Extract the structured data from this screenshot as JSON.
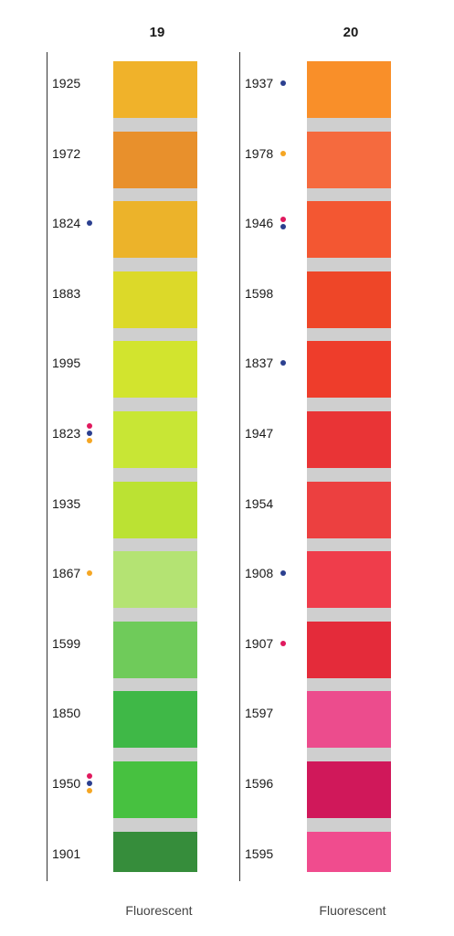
{
  "columns": [
    {
      "title": "19",
      "footer": "Fluorescent",
      "items": [
        {
          "code": "1925",
          "color": "#f0b22a",
          "dots": []
        },
        {
          "code": "1972",
          "color": "#e8902c",
          "dots": []
        },
        {
          "code": "1824",
          "color": "#ecb32a",
          "dots": [
            "blue"
          ]
        },
        {
          "code": "1883",
          "color": "#dcd929",
          "dots": []
        },
        {
          "code": "1995",
          "color": "#d2e42e",
          "dots": []
        },
        {
          "code": "1823",
          "color": "#c8e635",
          "dots": [
            "pink",
            "blue",
            "orange"
          ]
        },
        {
          "code": "1935",
          "color": "#bbe233",
          "dots": []
        },
        {
          "code": "1867",
          "color": "#b4e373",
          "dots": [
            "orange"
          ]
        },
        {
          "code": "1599",
          "color": "#6fcb5a",
          "dots": []
        },
        {
          "code": "1850",
          "color": "#3fb847",
          "dots": []
        },
        {
          "code": "1950",
          "color": "#47c140",
          "dots": [
            "pink",
            "blue",
            "orange"
          ]
        },
        {
          "code": "1901",
          "color": "#368d3b",
          "dots": []
        }
      ]
    },
    {
      "title": "20",
      "footer": "Fluorescent",
      "items": [
        {
          "code": "1937",
          "color": "#f98f29",
          "dots": [
            "blue"
          ]
        },
        {
          "code": "1978",
          "color": "#f56a3e",
          "dots": [
            "orange"
          ]
        },
        {
          "code": "1946",
          "color": "#f35732",
          "dots": [
            "pink",
            "blue"
          ]
        },
        {
          "code": "1598",
          "color": "#ee4628",
          "dots": []
        },
        {
          "code": "1837",
          "color": "#ee3d2b",
          "dots": [
            "blue"
          ]
        },
        {
          "code": "1947",
          "color": "#e93436",
          "dots": []
        },
        {
          "code": "1954",
          "color": "#ec4040",
          "dots": []
        },
        {
          "code": "1908",
          "color": "#ef3d4b",
          "dots": [
            "blue"
          ]
        },
        {
          "code": "1907",
          "color": "#e42b3a",
          "dots": [
            "pink"
          ]
        },
        {
          "code": "1597",
          "color": "#ec4c8d",
          "dots": []
        },
        {
          "code": "1596",
          "color": "#d0185a",
          "dots": []
        },
        {
          "code": "1595",
          "color": "#f04c8e",
          "dots": []
        }
      ]
    }
  ],
  "dot_colors": {
    "pink": "#e0195e",
    "blue": "#2b3f8f",
    "orange": "#f5a623"
  }
}
